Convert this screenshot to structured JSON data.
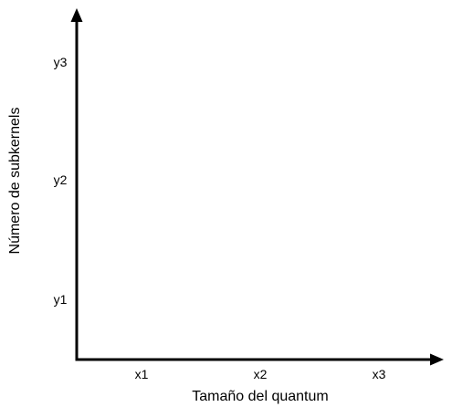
{
  "x_axis": {
    "label": "Tamaño del quantum",
    "ticks": [
      "x1",
      "x2",
      "x3"
    ]
  },
  "y_axis": {
    "label": "Número de subkernels",
    "ticks": [
      "y1",
      "y2",
      "y3"
    ]
  },
  "colors": {
    "axis": "#000000",
    "text": "#000000",
    "background": "#ffffff"
  }
}
